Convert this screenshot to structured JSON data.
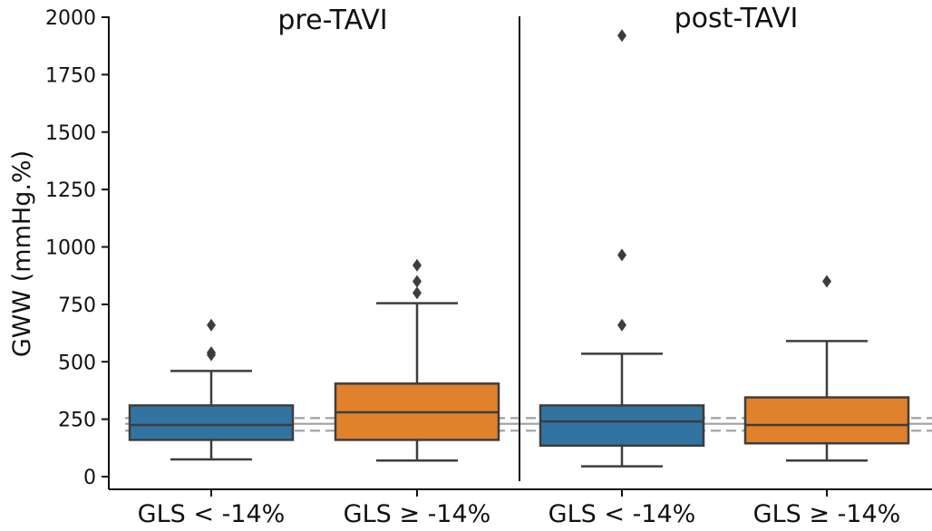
{
  "chart_data": {
    "type": "box",
    "ylabel": "GWW (mmHg.%)",
    "ylim": [
      -60,
      2000
    ],
    "yticks": [
      0,
      250,
      500,
      750,
      1000,
      1250,
      1500,
      1750,
      2000
    ],
    "ytick_labels": [
      "0",
      "250",
      "500",
      "750",
      "1000",
      "1250",
      "1500",
      "1750",
      "2000"
    ],
    "categories": [
      "GLS < -14%",
      "GLS ≥ -14%",
      "GLS < -14%",
      "GLS ≥ -14%"
    ],
    "panels": [
      {
        "title": "pre-TAVI",
        "category_indices": [
          0,
          1
        ]
      },
      {
        "title": "post-TAVI",
        "category_indices": [
          2,
          3
        ]
      }
    ],
    "boxes": [
      {
        "category": "GLS < -14%",
        "panel": "pre-TAVI",
        "color": "#3274a1",
        "whisker_low": 75,
        "q1": 160,
        "median": 225,
        "q3": 310,
        "whisker_high": 460,
        "outliers": [
          530,
          540,
          660
        ]
      },
      {
        "category": "GLS ≥ -14%",
        "panel": "pre-TAVI",
        "color": "#e1812c",
        "whisker_low": 70,
        "q1": 160,
        "median": 280,
        "q3": 405,
        "whisker_high": 755,
        "outliers": [
          800,
          850,
          920
        ]
      },
      {
        "category": "GLS < -14%",
        "panel": "post-TAVI",
        "color": "#3274a1",
        "whisker_low": 45,
        "q1": 135,
        "median": 240,
        "q3": 310,
        "whisker_high": 535,
        "outliers": [
          660,
          965,
          1920
        ]
      },
      {
        "category": "GLS ≥ -14%",
        "panel": "post-TAVI",
        "color": "#e1812c",
        "whisker_low": 70,
        "q1": 145,
        "median": 225,
        "q3": 345,
        "whisker_high": 590,
        "outliers": [
          850
        ]
      }
    ],
    "reference_lines": [
      {
        "value": 200,
        "style": "dashed",
        "color": "#a0a0a0"
      },
      {
        "value": 230,
        "style": "solid",
        "color": "#a0a0a0"
      },
      {
        "value": 255,
        "style": "dashed",
        "color": "#a0a0a0"
      }
    ],
    "colors": {
      "blue": "#3274a1",
      "orange": "#e1812c",
      "edge": "#3d3d3d",
      "reference": "#a0a0a0"
    }
  }
}
